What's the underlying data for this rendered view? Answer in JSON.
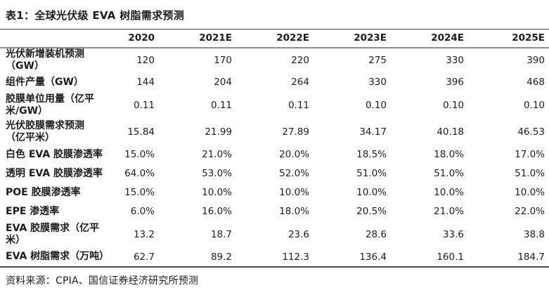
{
  "title": "表1：全球光伏级 EVA 树脂需求预测",
  "source": "资料来源：CPIA、国信证券经济研究所预测",
  "table": {
    "columns": [
      "2020",
      "2021E",
      "2022E",
      "2023E",
      "2024E",
      "2025E"
    ],
    "rows": [
      {
        "label": "光伏新增装机预测\n（GW）",
        "values": [
          "120",
          "170",
          "220",
          "275",
          "330",
          "390"
        ]
      },
      {
        "label": "组件产量（GW）",
        "values": [
          "144",
          "204",
          "264",
          "330",
          "396",
          "468"
        ]
      },
      {
        "label": "胶膜单位用量（亿平\n米/GW）",
        "values": [
          "0.11",
          "0.11",
          "0.11",
          "0.10",
          "0.10",
          "0.10"
        ]
      },
      {
        "label": "光伏胶膜需求预测\n（亿平米）",
        "values": [
          "15.84",
          "21.99",
          "27.89",
          "34.17",
          "40.18",
          "46.53"
        ]
      },
      {
        "label": "白色 EVA 胶膜渗透率",
        "values": [
          "15.0%",
          "21.0%",
          "20.0%",
          "18.5%",
          "18.0%",
          "17.0%"
        ]
      },
      {
        "label": "透明 EVA 胶膜渗透率",
        "values": [
          "64.0%",
          "53.0%",
          "52.0%",
          "51.0%",
          "51.0%",
          "51.0%"
        ]
      },
      {
        "label": "POE 胶膜渗透率",
        "values": [
          "15.0%",
          "10.0%",
          "10.0%",
          "10.0%",
          "10.0%",
          "10.0%"
        ]
      },
      {
        "label": "EPE 渗透率",
        "values": [
          "6.0%",
          "16.0%",
          "18.0%",
          "20.5%",
          "21.0%",
          "22.0%"
        ]
      },
      {
        "label": "EVA 胶膜需求（亿平\n米）",
        "values": [
          "13.2",
          "18.7",
          "23.6",
          "28.6",
          "33.6",
          "38.8"
        ]
      },
      {
        "label": "EVA 树脂需求（万吨）",
        "values": [
          "62.7",
          "89.2",
          "112.3",
          "136.4",
          "160.1",
          "184.7"
        ]
      }
    ]
  },
  "colors": {
    "text": "#1c1c1c",
    "rule_dark": "#3f3f3f",
    "rule_header": "#8f8f8f",
    "background": "#ffffff"
  }
}
